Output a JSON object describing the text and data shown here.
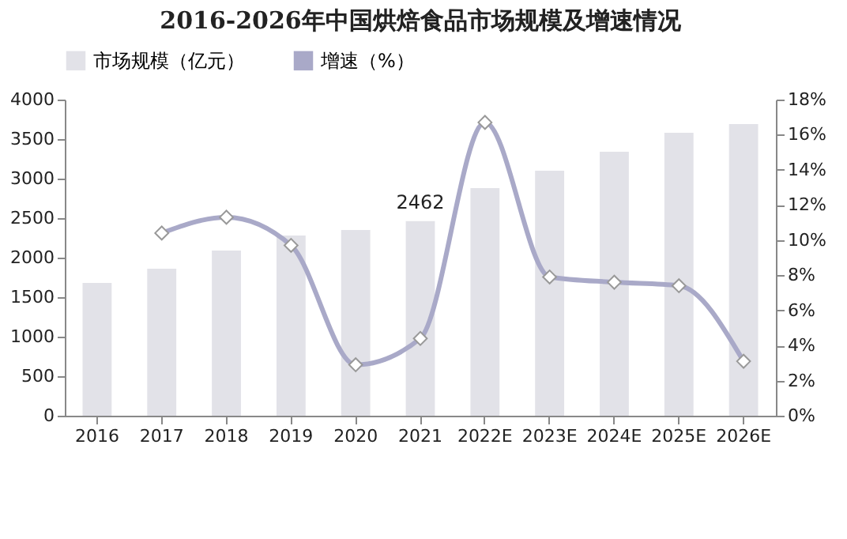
{
  "chart_data": {
    "type": "bar",
    "title": "2016-2026年中国烘焙食品市场规模及增速情况",
    "categories": [
      "2016",
      "2017",
      "2018",
      "2019",
      "2020",
      "2021",
      "2022E",
      "2023E",
      "2024E",
      "2025E",
      "2026E"
    ],
    "series": [
      {
        "name": "市场规模（亿元）",
        "color": "#e2e2e8",
        "values": [
          1680,
          1860,
          2090,
          2280,
          2350,
          2462,
          2880,
          3100,
          3340,
          3580,
          3690
        ],
        "value_labels": [
          null,
          null,
          null,
          null,
          null,
          "2462",
          null,
          null,
          null,
          null,
          null
        ]
      },
      {
        "name": "增速（%）",
        "type": "line",
        "axis": "y2",
        "color": "#a9a9c8",
        "marker": "diamond",
        "values": [
          null,
          10.4,
          11.3,
          9.7,
          2.9,
          4.4,
          16.7,
          7.9,
          7.6,
          7.4,
          3.1
        ]
      }
    ],
    "ylim": [
      0,
      4000
    ],
    "yticks": [
      0,
      500,
      1000,
      1500,
      2000,
      2500,
      3000,
      3500,
      4000
    ],
    "y2lim": [
      0,
      18
    ],
    "y2ticks": [
      {
        "value": 0,
        "label": "0%"
      },
      {
        "value": 2,
        "label": "2%"
      },
      {
        "value": 4,
        "label": "4%"
      },
      {
        "value": 6,
        "label": "6%"
      },
      {
        "value": 8,
        "label": "8%"
      },
      {
        "value": 10,
        "label": "10%"
      },
      {
        "value": 12,
        "label": "12%"
      },
      {
        "value": 14,
        "label": "14%"
      },
      {
        "value": 16,
        "label": "16%"
      },
      {
        "value": 18,
        "label": "18%"
      }
    ],
    "grid": false,
    "legend": "top"
  }
}
